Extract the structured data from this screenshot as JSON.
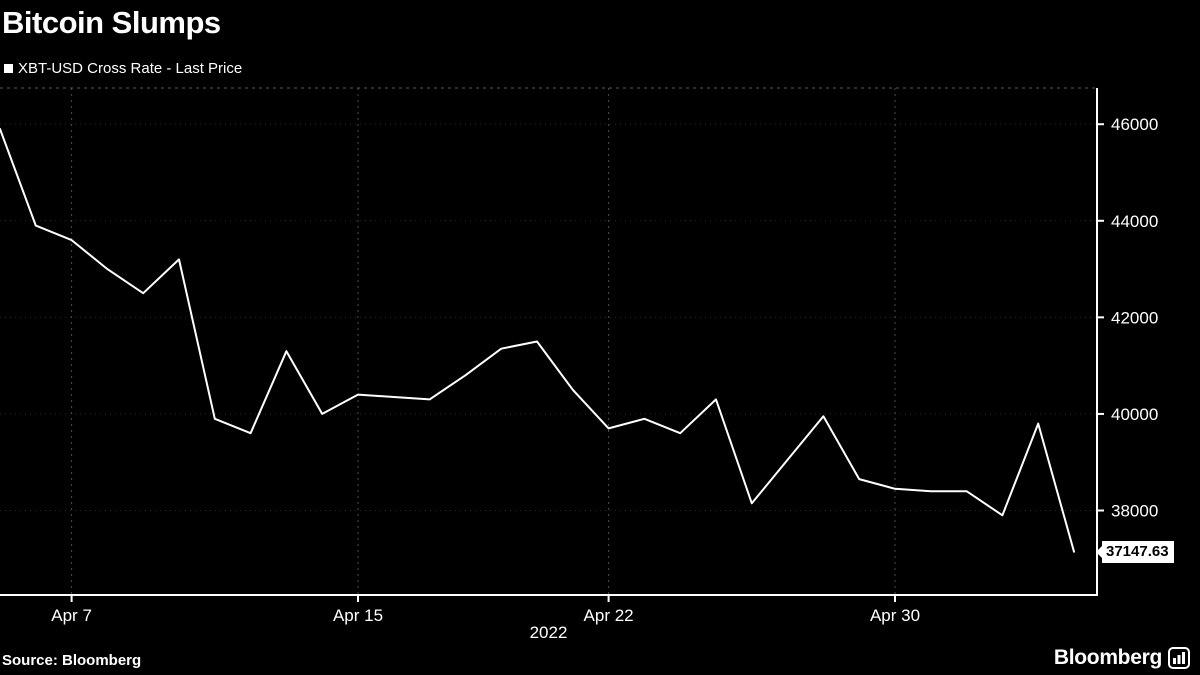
{
  "header": {
    "title": "Bitcoin Slumps",
    "legend_label": "XBT-USD Cross Rate - Last Price"
  },
  "footer": {
    "source": "Source: Bloomberg",
    "brand": "Bloomberg"
  },
  "chart_data": {
    "type": "line",
    "title": "Bitcoin Slumps",
    "series_name": "XBT-USD Cross Rate - Last Price",
    "x_axis_secondary_label": "2022",
    "x_tick_labels": [
      "Apr 7",
      "Apr 15",
      "Apr 22",
      "Apr 30"
    ],
    "x_tick_indices": [
      2,
      10,
      17,
      25
    ],
    "y_ticks": [
      38000,
      40000,
      42000,
      44000,
      46000
    ],
    "ylim": [
      36250,
      46750
    ],
    "grid": true,
    "legend_position": "top-left",
    "axis_side": "right",
    "dates": [
      "Apr 5",
      "Apr 6",
      "Apr 7",
      "Apr 8",
      "Apr 9",
      "Apr 10",
      "Apr 11",
      "Apr 12",
      "Apr 13",
      "Apr 14",
      "Apr 15",
      "Apr 16",
      "Apr 17",
      "Apr 18",
      "Apr 19",
      "Apr 20",
      "Apr 21",
      "Apr 22",
      "Apr 23",
      "Apr 24",
      "Apr 25",
      "Apr 26",
      "Apr 27",
      "Apr 28",
      "Apr 29",
      "Apr 30",
      "May 1",
      "May 2",
      "May 3",
      "May 4",
      "May 5"
    ],
    "values": [
      45900,
      43900,
      43600,
      43000,
      42500,
      43200,
      39900,
      39600,
      41300,
      40000,
      40400,
      40350,
      40300,
      40800,
      41350,
      41500,
      40500,
      39700,
      39900,
      39600,
      40300,
      38150,
      39050,
      39950,
      38650,
      38450,
      38400,
      38400,
      37900,
      39800,
      37147.63
    ],
    "last_price_label": "37147.63",
    "line_color": "#ffffff",
    "background_color": "#000000",
    "axis_color": "#ffffff",
    "vgrid_color": "#4d4d4d",
    "hgrid_color": "#2b2b2b",
    "top_border_color": "#5a5a5a"
  }
}
